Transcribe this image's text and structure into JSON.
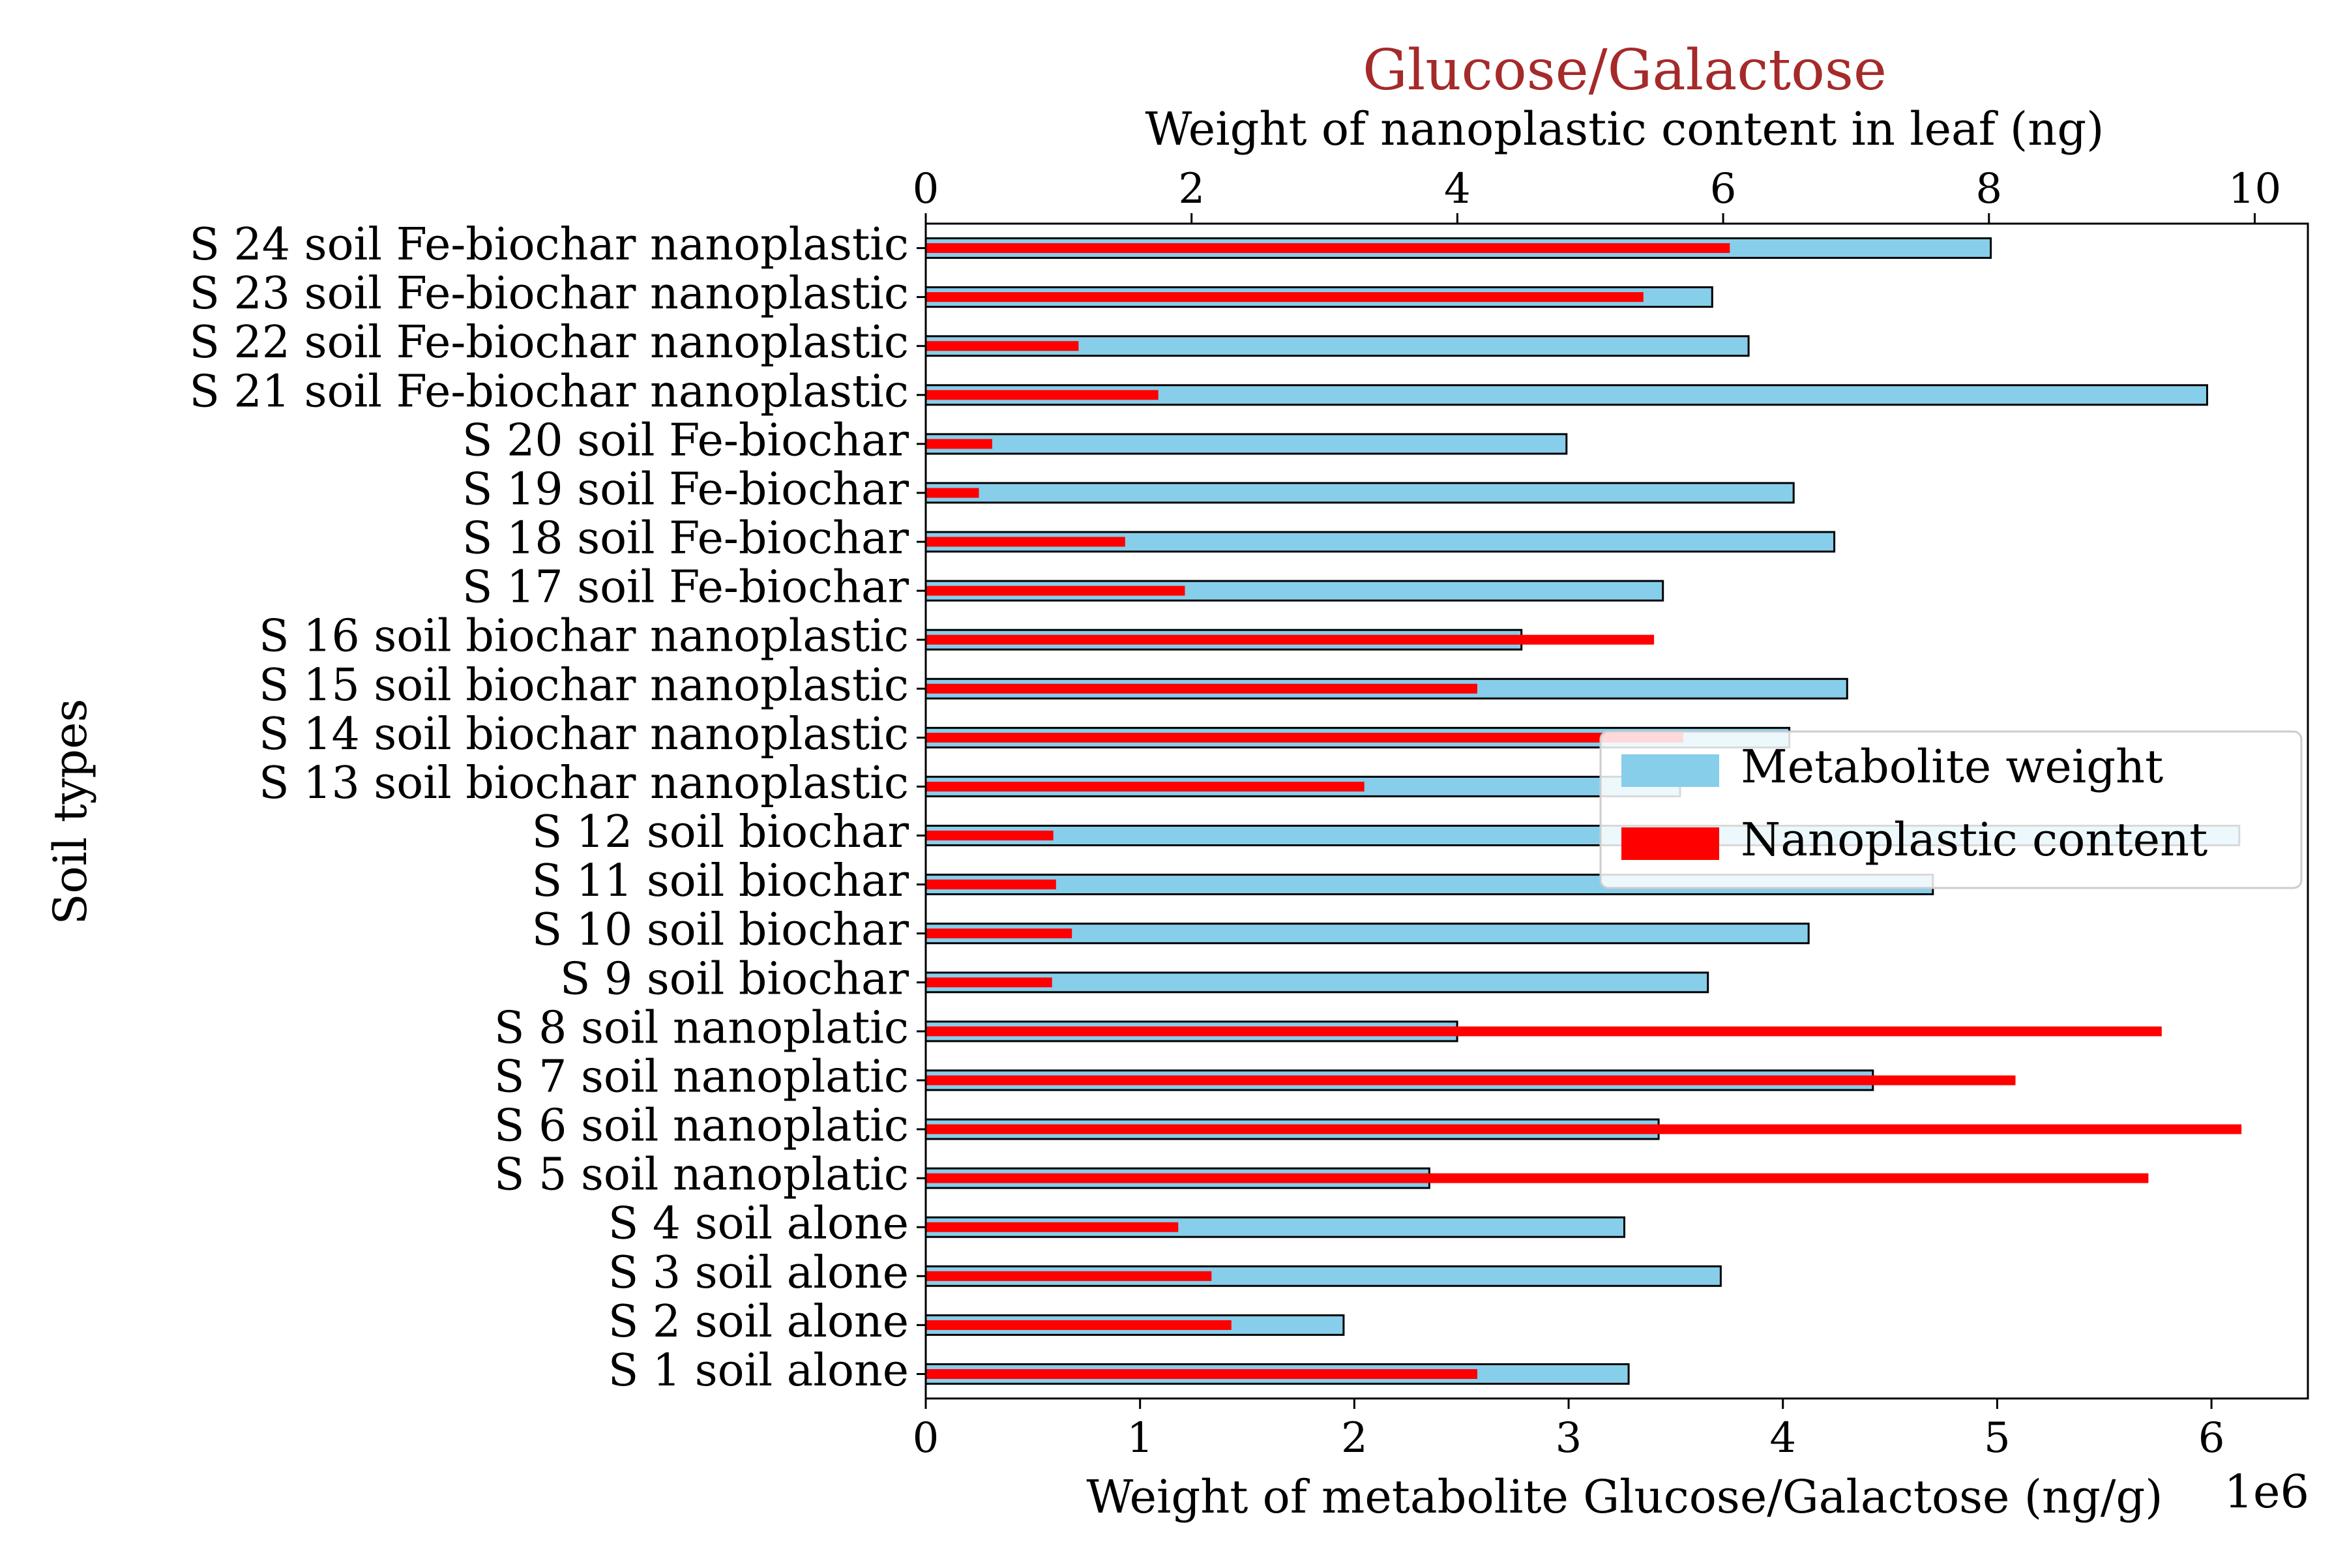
{
  "chart_data": {
    "type": "bar",
    "orientation": "horizontal",
    "title": "Glucose/Galactose",
    "title_color": "#a52a2a",
    "xlabel": "Weight of metabolite Glucose/Galactose (ng/g)",
    "xlabel_top": "Weight of nanoplastic content in leaf (ng)",
    "ylabel": "Soil types",
    "x_offset_text": "1e6",
    "xlim": [
      0,
      6450000
    ],
    "xlim_top": [
      0,
      10.4
    ],
    "xticks": [
      "0",
      "1",
      "2",
      "3",
      "4",
      "5",
      "6"
    ],
    "xticks_top": [
      "0",
      "2",
      "4",
      "6",
      "8",
      "10"
    ],
    "grid": false,
    "legend_position": "center-right",
    "categories": [
      "S 1 soil alone",
      "S 2 soil alone",
      "S 3 soil alone",
      "S 4 soil alone",
      "S 5 soil nanoplatic",
      "S 6 soil nanoplatic",
      "S 7 soil nanoplatic",
      "S 8 soil nanoplatic",
      "S 9 soil biochar",
      "S 10 soil biochar",
      "S 11 soil biochar",
      "S 12 soil biochar",
      "S 13 soil biochar nanoplastic",
      "S 14 soil biochar nanoplastic",
      "S 15 soil biochar nanoplastic",
      "S 16 soil biochar nanoplastic",
      "S 17 soil Fe-biochar",
      "S 18 soil Fe-biochar",
      "S 19 soil Fe-biochar",
      "S 20 soil Fe-biochar",
      "S 21 soil Fe-biochar nanoplastic",
      "S 22 soil Fe-biochar nanoplastic",
      "S 23 soil Fe-biochar nanoplastic",
      "S 24 soil Fe-biochar nanoplastic"
    ],
    "series": [
      {
        "name": "Metabolite weight",
        "axis": "bottom",
        "color": "#87ceeb",
        "values": [
          3280000,
          1950000,
          3710000,
          3260000,
          2350000,
          3420000,
          4420000,
          2480000,
          3650000,
          4120000,
          4700000,
          6130000,
          3520000,
          4030000,
          4300000,
          2780000,
          3440000,
          4240000,
          4050000,
          2990000,
          5980000,
          3840000,
          3670000,
          4970000
        ]
      },
      {
        "name": "Nanoplastic content",
        "axis": "top",
        "color": "#ff0000",
        "values": [
          4.15,
          2.3,
          2.15,
          1.9,
          9.2,
          9.9,
          8.2,
          9.3,
          0.95,
          1.1,
          0.98,
          0.96,
          3.3,
          5.7,
          4.15,
          5.48,
          1.95,
          1.5,
          0.4,
          0.5,
          1.75,
          1.15,
          5.4,
          6.05
        ]
      }
    ]
  }
}
